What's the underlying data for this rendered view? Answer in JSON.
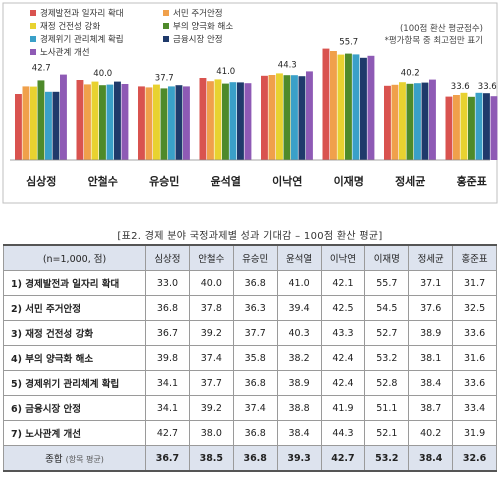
{
  "chart_data": {
    "type": "bar",
    "categories": [
      "심상정",
      "안철수",
      "유승민",
      "윤석열",
      "이낙연",
      "이재명",
      "정세균",
      "홍준표"
    ],
    "series": [
      {
        "name": "경제발전과 일자리 확대",
        "color": "#d9534f",
        "values": [
          33.0,
          40.0,
          36.8,
          41.0,
          42.1,
          55.7,
          37.1,
          31.7
        ]
      },
      {
        "name": "서민 주거안정",
        "color": "#f0a04b",
        "values": [
          36.8,
          37.8,
          36.3,
          39.4,
          42.5,
          54.5,
          37.6,
          32.5
        ]
      },
      {
        "name": "재정 건전성 강화",
        "color": "#e8d230",
        "values": [
          36.7,
          39.2,
          37.7,
          40.3,
          43.3,
          52.7,
          38.9,
          33.6
        ]
      },
      {
        "name": "부의 양극화 해소",
        "color": "#4e8a2a",
        "values": [
          39.8,
          37.4,
          35.8,
          38.2,
          42.4,
          53.2,
          38.1,
          31.6
        ]
      },
      {
        "name": "경제위기 관리체계 확립",
        "color": "#3aa0c8",
        "values": [
          34.1,
          37.7,
          36.8,
          38.9,
          42.4,
          52.8,
          38.4,
          33.6
        ]
      },
      {
        "name": "금융시장 안정",
        "color": "#1f3a6b",
        "values": [
          34.1,
          39.2,
          37.4,
          38.8,
          41.9,
          51.1,
          38.7,
          33.4
        ]
      },
      {
        "name": "노사관계 개선",
        "color": "#8e5ab5",
        "values": [
          42.7,
          38.0,
          36.8,
          38.4,
          44.3,
          52.1,
          40.2,
          31.9
        ]
      }
    ],
    "peak_labels": [
      "42.7",
      "40.0",
      "37.7",
      "41.0",
      "44.3",
      "55.7",
      "40.2",
      "33.6",
      "33.6"
    ],
    "notes": [
      "(100점 환산 평균점수)",
      "*평가항목 중 최고점만 표기"
    ]
  },
  "table": {
    "title": "[표2. 경제 분야 국정과제별 성과 기대감 – 100점 환산 평균]",
    "corner": "(n=1,000, 점)",
    "headers": [
      "심상정",
      "안철수",
      "유승민",
      "윤석열",
      "이낙연",
      "이재명",
      "정세균",
      "홍준표"
    ],
    "rows": [
      {
        "label": "1) 경제발전과 일자리 확대",
        "values": [
          "33.0",
          "40.0",
          "36.8",
          "41.0",
          "42.1",
          "55.7",
          "37.1",
          "31.7"
        ]
      },
      {
        "label": "2) 서민 주거안정",
        "values": [
          "36.8",
          "37.8",
          "36.3",
          "39.4",
          "42.5",
          "54.5",
          "37.6",
          "32.5"
        ]
      },
      {
        "label": "3) 재정 건전성 강화",
        "values": [
          "36.7",
          "39.2",
          "37.7",
          "40.3",
          "43.3",
          "52.7",
          "38.9",
          "33.6"
        ]
      },
      {
        "label": "4) 부의 양극화 해소",
        "values": [
          "39.8",
          "37.4",
          "35.8",
          "38.2",
          "42.4",
          "53.2",
          "38.1",
          "31.6"
        ]
      },
      {
        "label": "5) 경제위기 관리체계 확립",
        "values": [
          "34.1",
          "37.7",
          "36.8",
          "38.9",
          "42.4",
          "52.8",
          "38.4",
          "33.6"
        ]
      },
      {
        "label": "6) 금융시장 안정",
        "values": [
          "34.1",
          "39.2",
          "37.4",
          "38.8",
          "41.9",
          "51.1",
          "38.7",
          "33.4"
        ]
      },
      {
        "label": "7) 노사관계 개선",
        "values": [
          "42.7",
          "38.0",
          "36.8",
          "38.4",
          "44.3",
          "52.1",
          "40.2",
          "31.9"
        ]
      }
    ],
    "total": {
      "label": "종합",
      "sub": "(항목 평균)",
      "values": [
        "36.7",
        "38.5",
        "36.8",
        "39.3",
        "42.7",
        "53.2",
        "38.4",
        "32.6"
      ]
    }
  }
}
